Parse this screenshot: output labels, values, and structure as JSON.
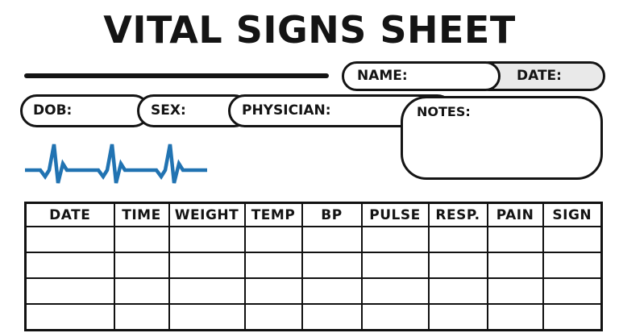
{
  "page": {
    "title": "VITAL SIGNS SHEET"
  },
  "header": {
    "name_label": "NAME:",
    "date_label": "DATE:"
  },
  "patient": {
    "dob_label": "DOB:",
    "sex_label": "SEX:",
    "physician_label": "PHYSICIAN:",
    "notes_label": "NOTES:"
  },
  "graphics": {
    "ekg_icon": "heartbeat-line",
    "ekg_color": "#2173b2",
    "date_pill_fill": "#e9e9e9",
    "ink_color": "#141414"
  },
  "table": {
    "headers": [
      "DATE",
      "TIME",
      "WEIGHT",
      "TEMP",
      "BP",
      "PULSE",
      "RESP.",
      "PAIN",
      "SIGN"
    ],
    "rows": [
      [
        "",
        "",
        "",
        "",
        "",
        "",
        "",
        "",
        ""
      ],
      [
        "",
        "",
        "",
        "",
        "",
        "",
        "",
        "",
        ""
      ],
      [
        "",
        "",
        "",
        "",
        "",
        "",
        "",
        "",
        ""
      ],
      [
        "",
        "",
        "",
        "",
        "",
        "",
        "",
        "",
        ""
      ]
    ]
  }
}
